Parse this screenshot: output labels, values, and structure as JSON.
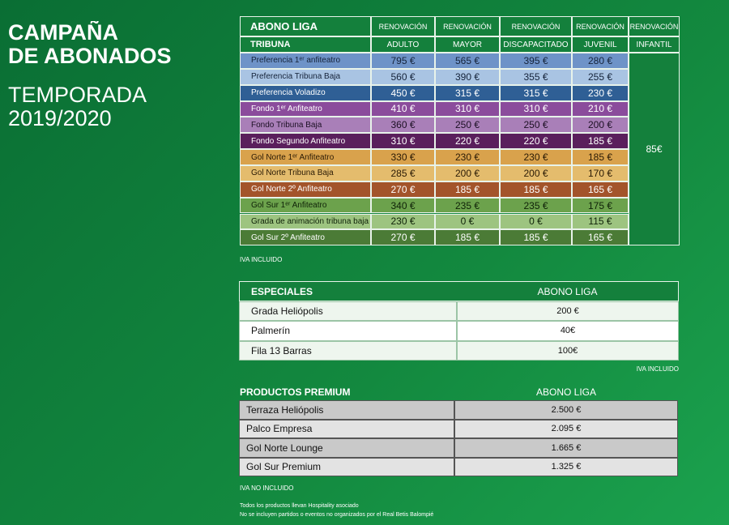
{
  "header": {
    "title": [
      "CAMPAÑA",
      "DE ABONADOS"
    ],
    "subtitle": [
      "TEMPORADA",
      "2019/2020"
    ]
  },
  "main_table": {
    "header_top": [
      "ABONO LIGA",
      "RENOVACIÓN",
      "RENOVACIÓN",
      "RENOVACIÓN",
      "RENOVACIÓN",
      "RENOVACIÓN"
    ],
    "header": [
      "TRIBUNA",
      "ADULTO",
      "MAYOR",
      "DISCAPACITADO",
      "JUVENIL",
      "INFANTIL"
    ],
    "rows": [
      [
        "Preferencia 1ᵉʳ anfiteatro",
        "795 €",
        "565 €",
        "395 €",
        "280 €"
      ],
      [
        "Preferencia Tribuna Baja",
        "560 €",
        "390 €",
        "355 €",
        "255 €"
      ],
      [
        "Preferencia Voladizo",
        "450 €",
        "315 €",
        "315 €",
        "230 €"
      ],
      [
        "Fondo 1ᵉʳ Anfiteatro",
        "410 €",
        "310 €",
        "310 €",
        "210 €"
      ],
      [
        "Fondo Tribuna Baja",
        "360 €",
        "250 €",
        "250 €",
        "200 €"
      ],
      [
        "Fondo Segundo Anfiteatro",
        "310 €",
        "220 €",
        "220 €",
        "185 €"
      ],
      [
        "Gol Norte 1ᵉʳ Anfiteatro",
        "330 €",
        "230 €",
        "230 €",
        "185 €"
      ],
      [
        "Gol Norte Tribuna Baja",
        "285 €",
        "200 €",
        "200 €",
        "170 €"
      ],
      [
        "Gol Norte 2º Anfiteatro",
        "270 €",
        "185 €",
        "185 €",
        "165 €"
      ],
      [
        "Gol Sur 1ᵉʳ Anfiteatro",
        "340 €",
        "235 €",
        "235 €",
        "175 €"
      ],
      [
        "Grada de animación tribuna baja",
        "230 €",
        "0 €",
        "0 €",
        "115 €"
      ],
      [
        "Gol Sur 2º Anfiteatro",
        "270 €",
        "185 €",
        "185 €",
        "165 €"
      ]
    ],
    "infantil": "85€",
    "note": "IVA INCLUIDO"
  },
  "especiales": {
    "header": [
      "ESPECIALES",
      "ABONO LIGA"
    ],
    "rows": [
      [
        "Grada Heliópolis",
        "200 €"
      ],
      [
        "Palmerín",
        "40€"
      ],
      [
        "Fila 13 Barras",
        "100€"
      ]
    ],
    "note": "IVA INCLUIDO"
  },
  "premium": {
    "header": [
      "PRODUCTOS PREMIUM",
      "ABONO LIGA"
    ],
    "rows": [
      [
        "Terraza Heliópolis",
        "2.500 €"
      ],
      [
        "Palco Empresa",
        "2.095 €"
      ],
      [
        "Gol Norte Lounge",
        "1.665 €"
      ],
      [
        "Gol Sur Premium",
        "1.325 €"
      ]
    ],
    "note": "IVA NO INCLUIDO"
  },
  "footer": [
    "Todos los productos llevan Hospitality asociado",
    "No se incluyen partidos o eventos no organizados por el Real Betis Balompié"
  ]
}
